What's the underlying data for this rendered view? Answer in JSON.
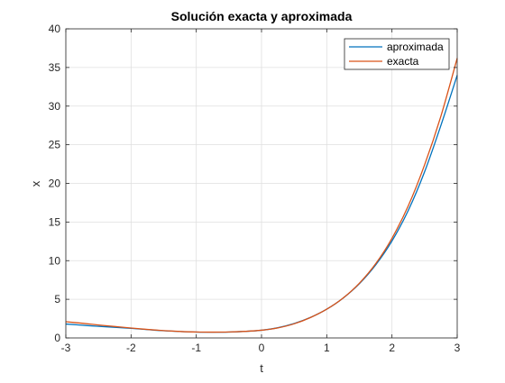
{
  "chart_data": {
    "type": "line",
    "title": "Solución exacta y aproximada",
    "xlabel": "t",
    "ylabel": "x",
    "xlim": [
      -3,
      3
    ],
    "ylim": [
      0,
      40
    ],
    "xticks": [
      -3,
      -2,
      -1,
      0,
      1,
      2,
      3
    ],
    "yticks": [
      0,
      5,
      10,
      15,
      20,
      25,
      30,
      35,
      40
    ],
    "grid": true,
    "legend_position": "top-right",
    "x": [
      -3,
      -2.75,
      -2.5,
      -2.25,
      -2,
      -1.75,
      -1.5,
      -1.25,
      -1,
      -0.75,
      -0.5,
      -0.25,
      0,
      0.25,
      0.5,
      0.75,
      1,
      1.25,
      1.5,
      1.75,
      2,
      2.25,
      2.5,
      2.75,
      3
    ],
    "series": [
      {
        "name": "aproximada",
        "color": "#0072BD",
        "values": [
          1.8,
          1.65,
          1.5,
          1.38,
          1.24,
          1.08,
          0.93,
          0.83,
          0.76,
          0.74,
          0.76,
          0.85,
          1.0,
          1.32,
          1.86,
          2.65,
          3.72,
          5.15,
          7.02,
          9.45,
          12.55,
          16.5,
          21.5,
          27.5,
          34.0
        ]
      },
      {
        "name": "exacta",
        "color": "#D95319",
        "values": [
          2.1,
          1.9,
          1.68,
          1.48,
          1.28,
          1.1,
          0.95,
          0.84,
          0.77,
          0.75,
          0.77,
          0.85,
          1.0,
          1.3,
          1.83,
          2.64,
          3.72,
          5.16,
          7.08,
          9.6,
          12.9,
          17.1,
          22.4,
          28.7,
          36.2
        ]
      }
    ]
  }
}
